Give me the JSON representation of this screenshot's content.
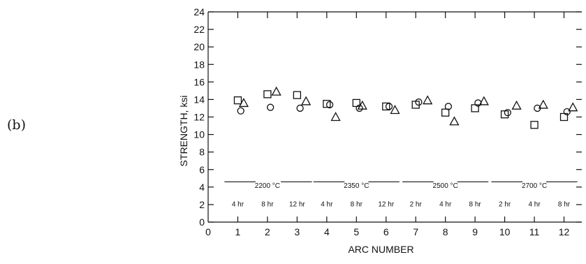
{
  "panel_label": "(b)",
  "chart_data": {
    "type": "scatter",
    "xlabel": "ARC NUMBER",
    "ylabel": "STRENGTH, ksi",
    "xlim": [
      0,
      12.6
    ],
    "ylim": [
      0,
      24
    ],
    "x_ticks": [
      "0",
      "1",
      "2",
      "3",
      "4",
      "5",
      "6",
      "7",
      "8",
      "9",
      "10",
      "11",
      "12"
    ],
    "y_ticks": [
      "0",
      "2",
      "4",
      "6",
      "8",
      "10",
      "12",
      "14",
      "16",
      "18",
      "20",
      "22",
      "24"
    ],
    "grid": false,
    "series": [
      {
        "marker": "square",
        "points": [
          [
            1,
            13.9
          ],
          [
            2,
            14.6
          ],
          [
            3,
            14.5
          ],
          [
            4,
            13.5
          ],
          [
            5,
            13.6
          ],
          [
            6,
            13.2
          ],
          [
            7,
            13.4
          ],
          [
            8,
            12.5
          ],
          [
            9,
            13.0
          ],
          [
            10,
            12.3
          ],
          [
            11,
            11.1
          ],
          [
            12,
            12.0
          ]
        ]
      },
      {
        "marker": "circle",
        "points": [
          [
            1.1,
            12.7
          ],
          [
            2.1,
            13.1
          ],
          [
            3.1,
            13.0
          ],
          [
            4.1,
            13.4
          ],
          [
            5.1,
            13.0
          ],
          [
            6.1,
            13.2
          ],
          [
            7.1,
            13.7
          ],
          [
            8.1,
            13.2
          ],
          [
            9.1,
            13.6
          ],
          [
            10.1,
            12.5
          ],
          [
            11.1,
            13.0
          ],
          [
            12.1,
            12.6
          ]
        ]
      },
      {
        "marker": "triangle",
        "points": [
          [
            1.2,
            13.6
          ],
          [
            2.3,
            14.9
          ],
          [
            3.3,
            13.8
          ],
          [
            4.3,
            12.0
          ],
          [
            5.2,
            13.3
          ],
          [
            6.3,
            12.8
          ],
          [
            7.4,
            13.9
          ],
          [
            8.3,
            11.5
          ],
          [
            9.3,
            13.8
          ],
          [
            10.4,
            13.3
          ],
          [
            11.3,
            13.4
          ],
          [
            12.3,
            13.1
          ]
        ]
      }
    ],
    "annotations": {
      "temperatures": [
        {
          "label": "2200 °C",
          "x": 2
        },
        {
          "label": "2350 °C",
          "x": 5
        },
        {
          "label": "2500 °C",
          "x": 8
        },
        {
          "label": "2700 °C",
          "x": 11
        }
      ],
      "times": [
        {
          "label": "4 hr",
          "x": 1
        },
        {
          "label": "8 hr",
          "x": 2
        },
        {
          "label": "12 hr",
          "x": 3
        },
        {
          "label": "4 hr",
          "x": 4
        },
        {
          "label": "8 hr",
          "x": 5
        },
        {
          "label": "12 hr",
          "x": 6
        },
        {
          "label": "2 hr",
          "x": 7
        },
        {
          "label": "4 hr",
          "x": 8
        },
        {
          "label": "8 hr",
          "x": 9
        },
        {
          "label": "2 hr",
          "x": 10
        },
        {
          "label": "4 hr",
          "x": 11
        },
        {
          "label": "8 hr",
          "x": 12
        }
      ]
    }
  }
}
